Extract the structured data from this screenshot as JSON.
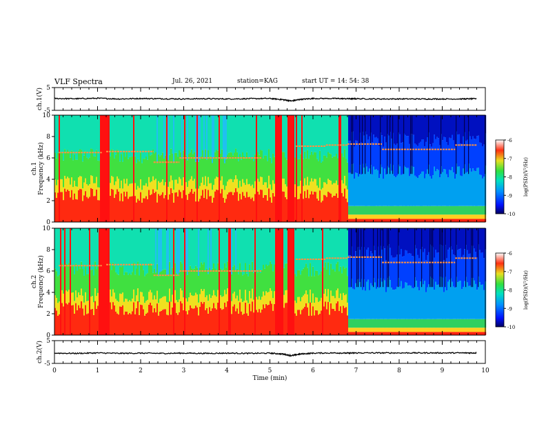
{
  "header": {
    "title": "VLF Spectra",
    "date": "Jul. 26, 2021",
    "station": "station=KAG",
    "start": "start UT =  14: 54: 38"
  },
  "chart_data": [
    {
      "type": "line",
      "panel": "ch1-voltage",
      "ylabel": "ch.1(V)",
      "ylim": [
        -5,
        5
      ],
      "yticks": [
        "5",
        "-5"
      ],
      "xlim": [
        0,
        10
      ],
      "series": [
        {
          "x": [
            0,
            0.5,
            1.0,
            1.5,
            2.0,
            2.5,
            3.0,
            3.5,
            4.0,
            4.5,
            5.0,
            5.3,
            5.5,
            5.7,
            6.0,
            6.5,
            6.8,
            7.0,
            7.5,
            8.0,
            8.5,
            9.0,
            9.5,
            9.8
          ],
          "values": [
            0.2,
            0.1,
            0.3,
            0.0,
            0.2,
            0.1,
            0.0,
            0.1,
            0.0,
            0.1,
            0.2,
            -0.3,
            -0.9,
            -0.2,
            0.2,
            0.2,
            0.1,
            0.1,
            0.0,
            0.0,
            0.0,
            0.0,
            0.0,
            0.1
          ]
        }
      ]
    },
    {
      "type": "heatmap",
      "panel": "ch1-spectrogram",
      "ylabel": "ch.1\nFrequency (kHz)",
      "ylim": [
        0,
        10
      ],
      "yticks": [
        "0",
        "2",
        "4",
        "6",
        "8",
        "10"
      ],
      "xlim": [
        0,
        10
      ],
      "colorbar": {
        "label": "log(PSD)(V²/Hz)",
        "range": [
          -10,
          -6
        ],
        "ticks": [
          "-6",
          "-7",
          "-8",
          "-9",
          "-10"
        ]
      },
      "tone_segments": [
        [
          0.1,
          1.1,
          6.5
        ],
        [
          1.2,
          2.3,
          6.6
        ],
        [
          2.3,
          2.9,
          5.6
        ],
        [
          2.9,
          4.8,
          6.0
        ],
        [
          5.6,
          6.3,
          7.1
        ],
        [
          6.3,
          6.8,
          7.2
        ],
        [
          6.8,
          7.6,
          7.3
        ],
        [
          7.6,
          9.3,
          6.8
        ],
        [
          9.3,
          9.8,
          7.2
        ]
      ]
    },
    {
      "type": "heatmap",
      "panel": "ch2-spectrogram",
      "ylabel": "ch.2\nFrequency (kHz)",
      "ylim": [
        0,
        10
      ],
      "yticks": [
        "0",
        "2",
        "4",
        "6",
        "8",
        "10"
      ],
      "xlim": [
        0,
        10
      ],
      "colorbar": {
        "label": "log(PSD)(V²/Hz)",
        "range": [
          -10,
          -6
        ],
        "ticks": [
          "-6",
          "-7",
          "-8",
          "-9",
          "-10"
        ]
      },
      "tone_segments": [
        [
          0.1,
          1.1,
          6.5
        ],
        [
          1.2,
          2.3,
          6.6
        ],
        [
          2.3,
          2.9,
          5.6
        ],
        [
          2.9,
          4.8,
          6.0
        ],
        [
          5.6,
          6.3,
          7.1
        ],
        [
          6.3,
          6.8,
          7.2
        ],
        [
          6.8,
          7.6,
          7.3
        ],
        [
          7.6,
          9.3,
          6.8
        ],
        [
          9.3,
          9.8,
          7.2
        ]
      ]
    },
    {
      "type": "line",
      "panel": "ch2-voltage",
      "ylabel": "ch.2(V)",
      "ylim": [
        -5,
        5
      ],
      "yticks": [
        "5",
        "-5"
      ],
      "xlim": [
        0,
        10
      ],
      "xlabel": "Time (min)",
      "xticks": [
        "0",
        "1",
        "2",
        "3",
        "4",
        "5",
        "6",
        "7",
        "8",
        "9",
        "10"
      ],
      "series": [
        {
          "x": [
            0,
            0.5,
            1.0,
            1.5,
            2.0,
            2.5,
            3.0,
            3.5,
            4.0,
            4.5,
            5.0,
            5.3,
            5.5,
            5.7,
            6.0,
            6.5,
            6.8,
            7.0,
            7.5,
            8.0,
            8.5,
            9.0,
            9.5,
            9.8
          ],
          "values": [
            -0.5,
            -0.6,
            -0.4,
            -0.6,
            -0.5,
            -0.6,
            -0.5,
            -0.6,
            -0.5,
            -0.6,
            -0.5,
            -0.9,
            -1.6,
            -0.9,
            -0.5,
            -0.4,
            -0.5,
            -0.4,
            -0.4,
            -0.4,
            -0.4,
            -0.4,
            -0.4,
            -0.4
          ]
        }
      ]
    }
  ]
}
